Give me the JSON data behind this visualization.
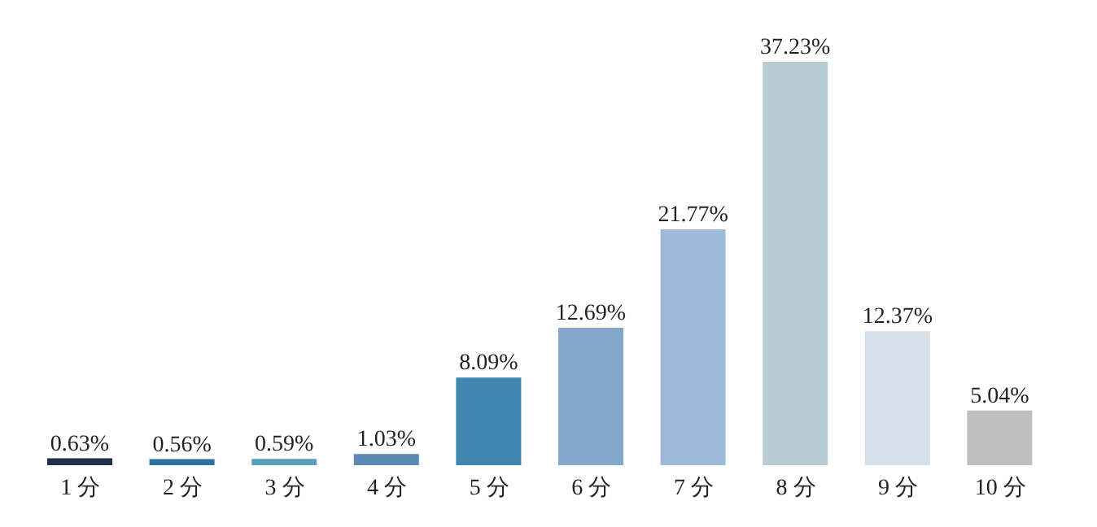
{
  "chart_data": {
    "type": "bar",
    "categories": [
      "1 分",
      "2 分",
      "3 分",
      "4 分",
      "5 分",
      "6 分",
      "7 分",
      "8 分",
      "9 分",
      "10 分"
    ],
    "values": [
      0.63,
      0.56,
      0.59,
      1.03,
      8.09,
      12.69,
      21.77,
      37.23,
      12.37,
      5.04
    ],
    "value_labels": [
      "0.63%",
      "0.56%",
      "0.59%",
      "1.03%",
      "8.09%",
      "12.69%",
      "21.77%",
      "37.23%",
      "12.37%",
      "5.04%"
    ],
    "colors": [
      "#1f2f4a",
      "#2e6f9e",
      "#5aa0b8",
      "#5b88b5",
      "#3f86b0",
      "#82a7c8",
      "#9fb9da",
      "#b8cdd3",
      "#d5e0e8",
      "#bfbfbf"
    ]
  }
}
